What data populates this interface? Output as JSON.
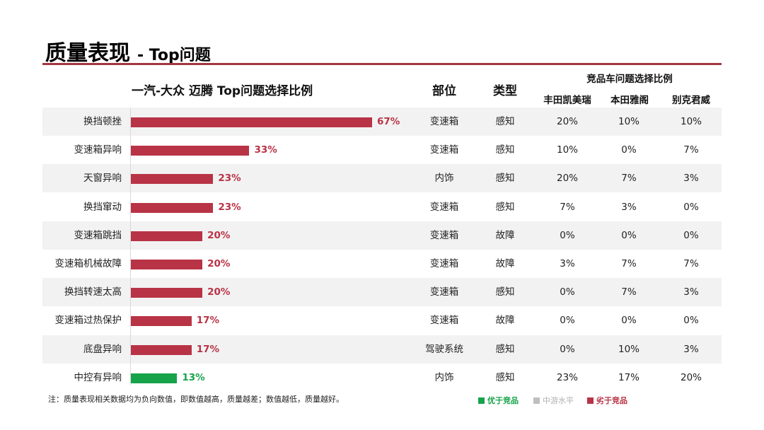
{
  "title": {
    "main": "质量表现",
    "sub": "- Top问题"
  },
  "headers": {
    "chart": "一汽-大众 迈腾 Top问题选择比例",
    "part": "部位",
    "type": "类型",
    "competitor_group": "竞品车问题选择比例",
    "competitors": [
      "丰田凯美瑞",
      "本田雅阁",
      "别克君威"
    ]
  },
  "chart_data": {
    "type": "bar",
    "orientation": "horizontal",
    "title": "一汽-大众 迈腾 Top问题选择比例",
    "unit": "%",
    "categories": [
      "换挡顿挫",
      "变速箱异响",
      "天窗异响",
      "换挡窜动",
      "变速箱跳挡",
      "变速箱机械故障",
      "换挡转速太高",
      "变速箱过热保护",
      "底盘异响",
      "中控有异响"
    ],
    "values": [
      67,
      33,
      23,
      23,
      20,
      20,
      20,
      17,
      17,
      13
    ],
    "labels": [
      "67%",
      "33%",
      "23%",
      "23%",
      "20%",
      "20%",
      "20%",
      "17%",
      "17%",
      "13%"
    ],
    "status": [
      "worse",
      "worse",
      "worse",
      "worse",
      "worse",
      "worse",
      "worse",
      "worse",
      "worse",
      "better"
    ],
    "xlim": [
      0,
      100
    ]
  },
  "rows": [
    {
      "part": "变速箱",
      "type": "感知",
      "camry": "20%",
      "accord": "10%",
      "regal": "10%"
    },
    {
      "part": "变速箱",
      "type": "感知",
      "camry": "10%",
      "accord": "0%",
      "regal": "7%"
    },
    {
      "part": "内饰",
      "type": "感知",
      "camry": "20%",
      "accord": "7%",
      "regal": "3%"
    },
    {
      "part": "变速箱",
      "type": "感知",
      "camry": "7%",
      "accord": "3%",
      "regal": "0%"
    },
    {
      "part": "变速箱",
      "type": "故障",
      "camry": "0%",
      "accord": "0%",
      "regal": "0%"
    },
    {
      "part": "变速箱",
      "type": "故障",
      "camry": "3%",
      "accord": "7%",
      "regal": "7%"
    },
    {
      "part": "变速箱",
      "type": "感知",
      "camry": "0%",
      "accord": "7%",
      "regal": "3%"
    },
    {
      "part": "变速箱",
      "type": "故障",
      "camry": "0%",
      "accord": "0%",
      "regal": "0%"
    },
    {
      "part": "驾驶系统",
      "type": "感知",
      "camry": "0%",
      "accord": "10%",
      "regal": "3%"
    },
    {
      "part": "内饰",
      "type": "感知",
      "camry": "23%",
      "accord": "17%",
      "regal": "20%"
    }
  ],
  "colors": {
    "worse": "#b83346",
    "better": "#16a34a",
    "mid": "#bfbfbf",
    "rule": "#a43443"
  },
  "note": "注：质量表现相关数据均为负向数值，即数值越高，质量越差；数值越低，质量越好。",
  "legend": {
    "better": "优于竞品",
    "mid": "中游水平",
    "worse": "劣于竞品"
  }
}
